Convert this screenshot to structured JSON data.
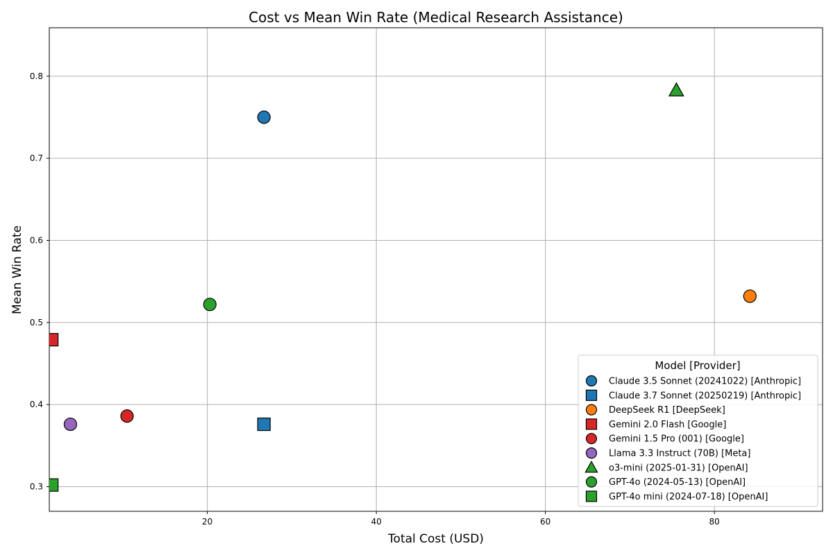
{
  "chart_data": {
    "type": "scatter",
    "title": "Cost vs Mean Win Rate (Medical Research Assistance)",
    "xlabel": "Total Cost (USD)",
    "ylabel": "Mean Win Rate",
    "xlim": [
      1.3,
      92.8
    ],
    "ylim": [
      0.27,
      0.859
    ],
    "xticks": [
      20,
      40,
      60,
      80
    ],
    "yticks": [
      0.3,
      0.4,
      0.5,
      0.6,
      0.7,
      0.8
    ],
    "xtick_labels": [
      "20",
      "40",
      "60",
      "80"
    ],
    "ytick_labels": [
      "0.3",
      "0.4",
      "0.5",
      "0.6",
      "0.7",
      "0.8"
    ],
    "grid": true,
    "legend": {
      "title": "Model [Provider]",
      "placement": "lower-right"
    },
    "series": [
      {
        "name": "Claude 3.5 Sonnet (20241022) [Anthropic]",
        "color": "#1f77b4",
        "marker": "circle",
        "x": 26.7,
        "y": 0.75
      },
      {
        "name": "Claude 3.7 Sonnet (20250219) [Anthropic]",
        "color": "#1f77b4",
        "marker": "square",
        "x": 26.7,
        "y": 0.376
      },
      {
        "name": "DeepSeek R1 [DeepSeek]",
        "color": "#ff7f0e",
        "marker": "circle",
        "x": 84.2,
        "y": 0.532
      },
      {
        "name": "Gemini 2.0 Flash [Google]",
        "color": "#d62728",
        "marker": "square",
        "x": 1.6,
        "y": 0.479
      },
      {
        "name": "Gemini 1.5 Pro (001) [Google]",
        "color": "#d62728",
        "marker": "circle",
        "x": 10.5,
        "y": 0.386
      },
      {
        "name": "Llama 3.3 Instruct (70B) [Meta]",
        "color": "#9467bd",
        "marker": "circle",
        "x": 3.8,
        "y": 0.376
      },
      {
        "name": "o3-mini (2025-01-31) [OpenAI]",
        "color": "#2ca02c",
        "marker": "triangle",
        "x": 75.5,
        "y": 0.783
      },
      {
        "name": "GPT-4o (2024-05-13) [OpenAI]",
        "color": "#2ca02c",
        "marker": "circle",
        "x": 20.3,
        "y": 0.522
      },
      {
        "name": "GPT-4o mini (2024-07-18) [OpenAI]",
        "color": "#2ca02c",
        "marker": "square",
        "x": 1.6,
        "y": 0.302
      }
    ]
  }
}
